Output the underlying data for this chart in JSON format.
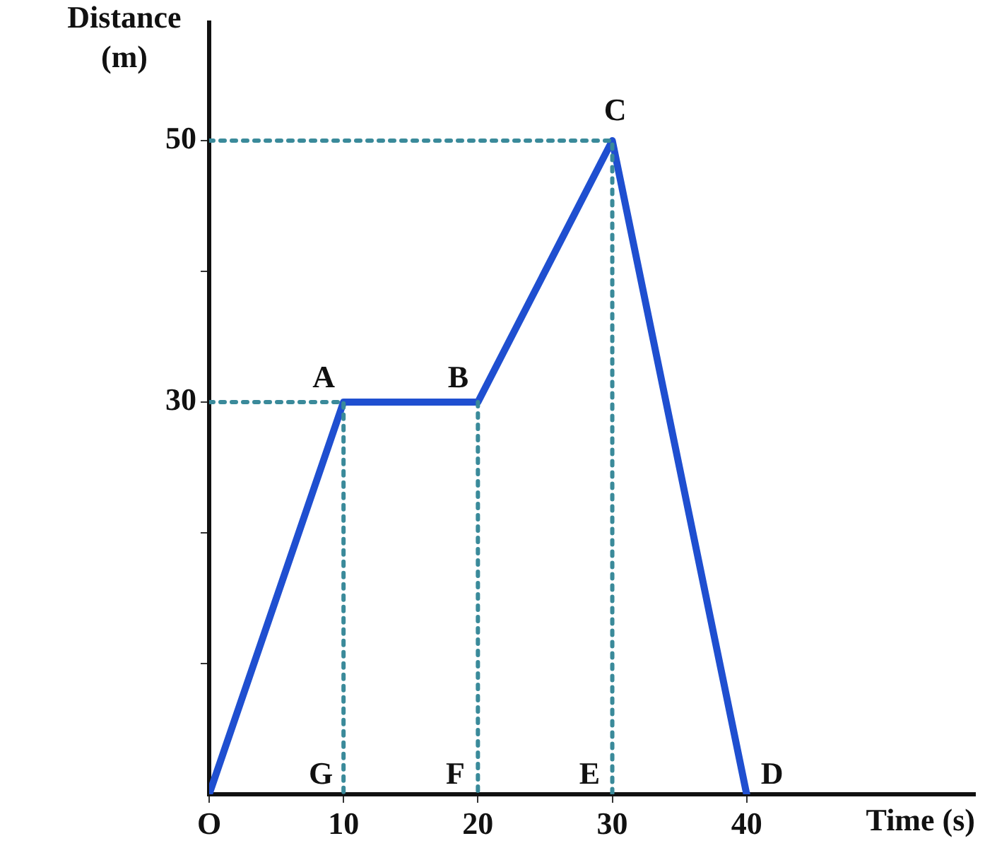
{
  "chart_data": {
    "type": "line",
    "xlabel": "Time (s)",
    "ylabel": "Distance (m)",
    "series": [
      {
        "x": [
          0,
          10,
          20,
          30,
          40
        ],
        "values": [
          0,
          30,
          30,
          50,
          0
        ],
        "color": "#1f4fd0",
        "line_style": "solid"
      },
      {
        "x": [
          0,
          10,
          10
        ],
        "values": [
          30,
          30,
          0
        ],
        "color": "#3a8a9a",
        "line_style": "dotted"
      },
      {
        "x": [
          20,
          20
        ],
        "values": [
          30,
          0
        ],
        "color": "#3a8a9a",
        "line_style": "dotted"
      },
      {
        "x": [
          0,
          30,
          30
        ],
        "values": [
          50,
          50,
          0
        ],
        "color": "#3a8a9a",
        "line_style": "dotted"
      }
    ],
    "xlim": [
      0,
      57
    ],
    "ylim": [
      0,
      59
    ],
    "xticks": [
      {
        "value": 0,
        "label": "O"
      },
      10,
      20,
      30,
      40
    ],
    "yticks": [
      {
        "value": 10,
        "label": null
      },
      {
        "value": 20,
        "label": null
      },
      30,
      {
        "value": 40,
        "label": null
      },
      50
    ],
    "annotations": [
      {
        "text": "A",
        "x": 10,
        "y": 30
      },
      {
        "text": "B",
        "x": 20,
        "y": 30
      },
      {
        "text": "C",
        "x": 30,
        "y": 50
      },
      {
        "text": "D",
        "x": 40,
        "y": 0
      },
      {
        "text": "E",
        "x": 30,
        "y": 0
      },
      {
        "text": "F",
        "x": 20,
        "y": 0
      },
      {
        "text": "G",
        "x": 10,
        "y": 0
      }
    ],
    "grid": false,
    "legend": false,
    "marker": "none"
  }
}
